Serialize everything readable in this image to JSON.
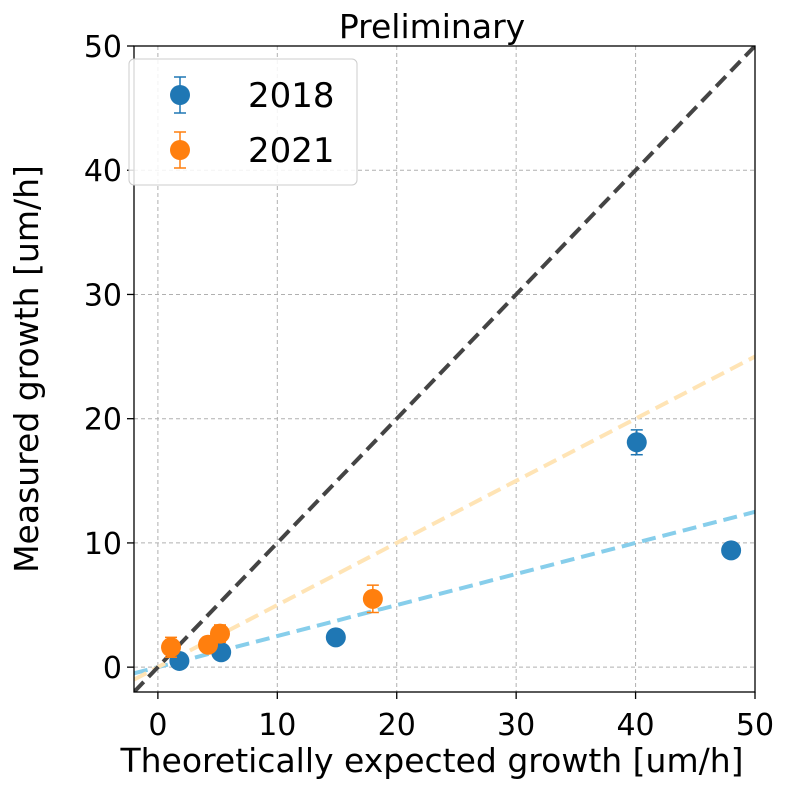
{
  "chart_data": {
    "type": "scatter",
    "title": "Preliminary",
    "xlabel": "Theoretically expected growth [um/h]",
    "ylabel": "Measured growth [um/h]",
    "xlim": [
      -2,
      50
    ],
    "ylim": [
      -2,
      50
    ],
    "xticks": [
      0,
      10,
      20,
      30,
      40,
      50
    ],
    "yticks": [
      0,
      10,
      20,
      30,
      40,
      50
    ],
    "grid": true,
    "legend_position": "top-left",
    "series": [
      {
        "name": "2018",
        "color": "#1f77b4",
        "x": [
          1.8,
          5.3,
          14.9,
          40.1,
          48.0
        ],
        "y": [
          0.5,
          1.2,
          2.4,
          18.1,
          9.4
        ],
        "yerr": [
          0.3,
          0.3,
          0.3,
          1.0,
          0.5
        ],
        "fit_slope": 0.25,
        "fit_color": "#87ceeb"
      },
      {
        "name": "2021",
        "color": "#ff7f0e",
        "x": [
          1.1,
          4.2,
          5.2,
          18.0
        ],
        "y": [
          1.6,
          1.8,
          2.7,
          5.5
        ],
        "yerr": [
          0.8,
          0.3,
          0.7,
          1.1
        ],
        "fit_slope": 0.5,
        "fit_color": "#ffe4b5"
      }
    ],
    "reference_line": {
      "slope": 1.0,
      "color": "#444444"
    }
  }
}
